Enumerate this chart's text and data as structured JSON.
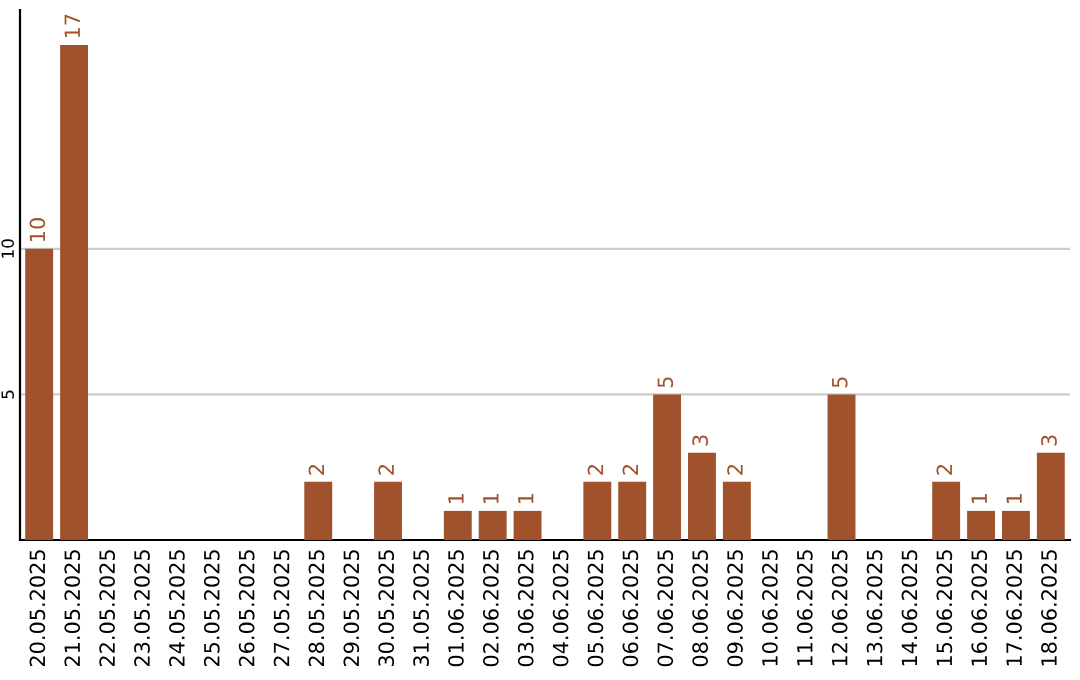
{
  "chart_data": {
    "type": "bar",
    "categories": [
      "20.05.2025",
      "21.05.2025",
      "22.05.2025",
      "23.05.2025",
      "24.05.2025",
      "25.05.2025",
      "26.05.2025",
      "27.05.2025",
      "28.05.2025",
      "29.05.2025",
      "30.05.2025",
      "31.05.2025",
      "01.06.2025",
      "02.06.2025",
      "03.06.2025",
      "04.06.2025",
      "05.06.2025",
      "06.06.2025",
      "07.06.2025",
      "08.06.2025",
      "09.06.2025",
      "10.06.2025",
      "11.06.2025",
      "12.06.2025",
      "13.06.2025",
      "14.06.2025",
      "15.06.2025",
      "16.06.2025",
      "17.06.2025",
      "18.06.2025"
    ],
    "values": [
      10,
      17,
      0,
      0,
      0,
      0,
      0,
      0,
      2,
      0,
      2,
      0,
      1,
      1,
      1,
      0,
      2,
      2,
      5,
      3,
      2,
      0,
      0,
      5,
      0,
      0,
      2,
      1,
      1,
      3
    ],
    "value_labels": [
      "10",
      "17",
      null,
      null,
      null,
      null,
      null,
      null,
      "2",
      null,
      "2",
      null,
      "1",
      "1",
      "1",
      null,
      "2",
      "2",
      "5",
      "3",
      "2",
      null,
      null,
      "5",
      null,
      null,
      "2",
      "1",
      "1",
      "3"
    ],
    "color": "#a0522d",
    "ylim": [
      0,
      18.2
    ],
    "yticks": [
      5,
      10
    ],
    "grid": "y"
  }
}
